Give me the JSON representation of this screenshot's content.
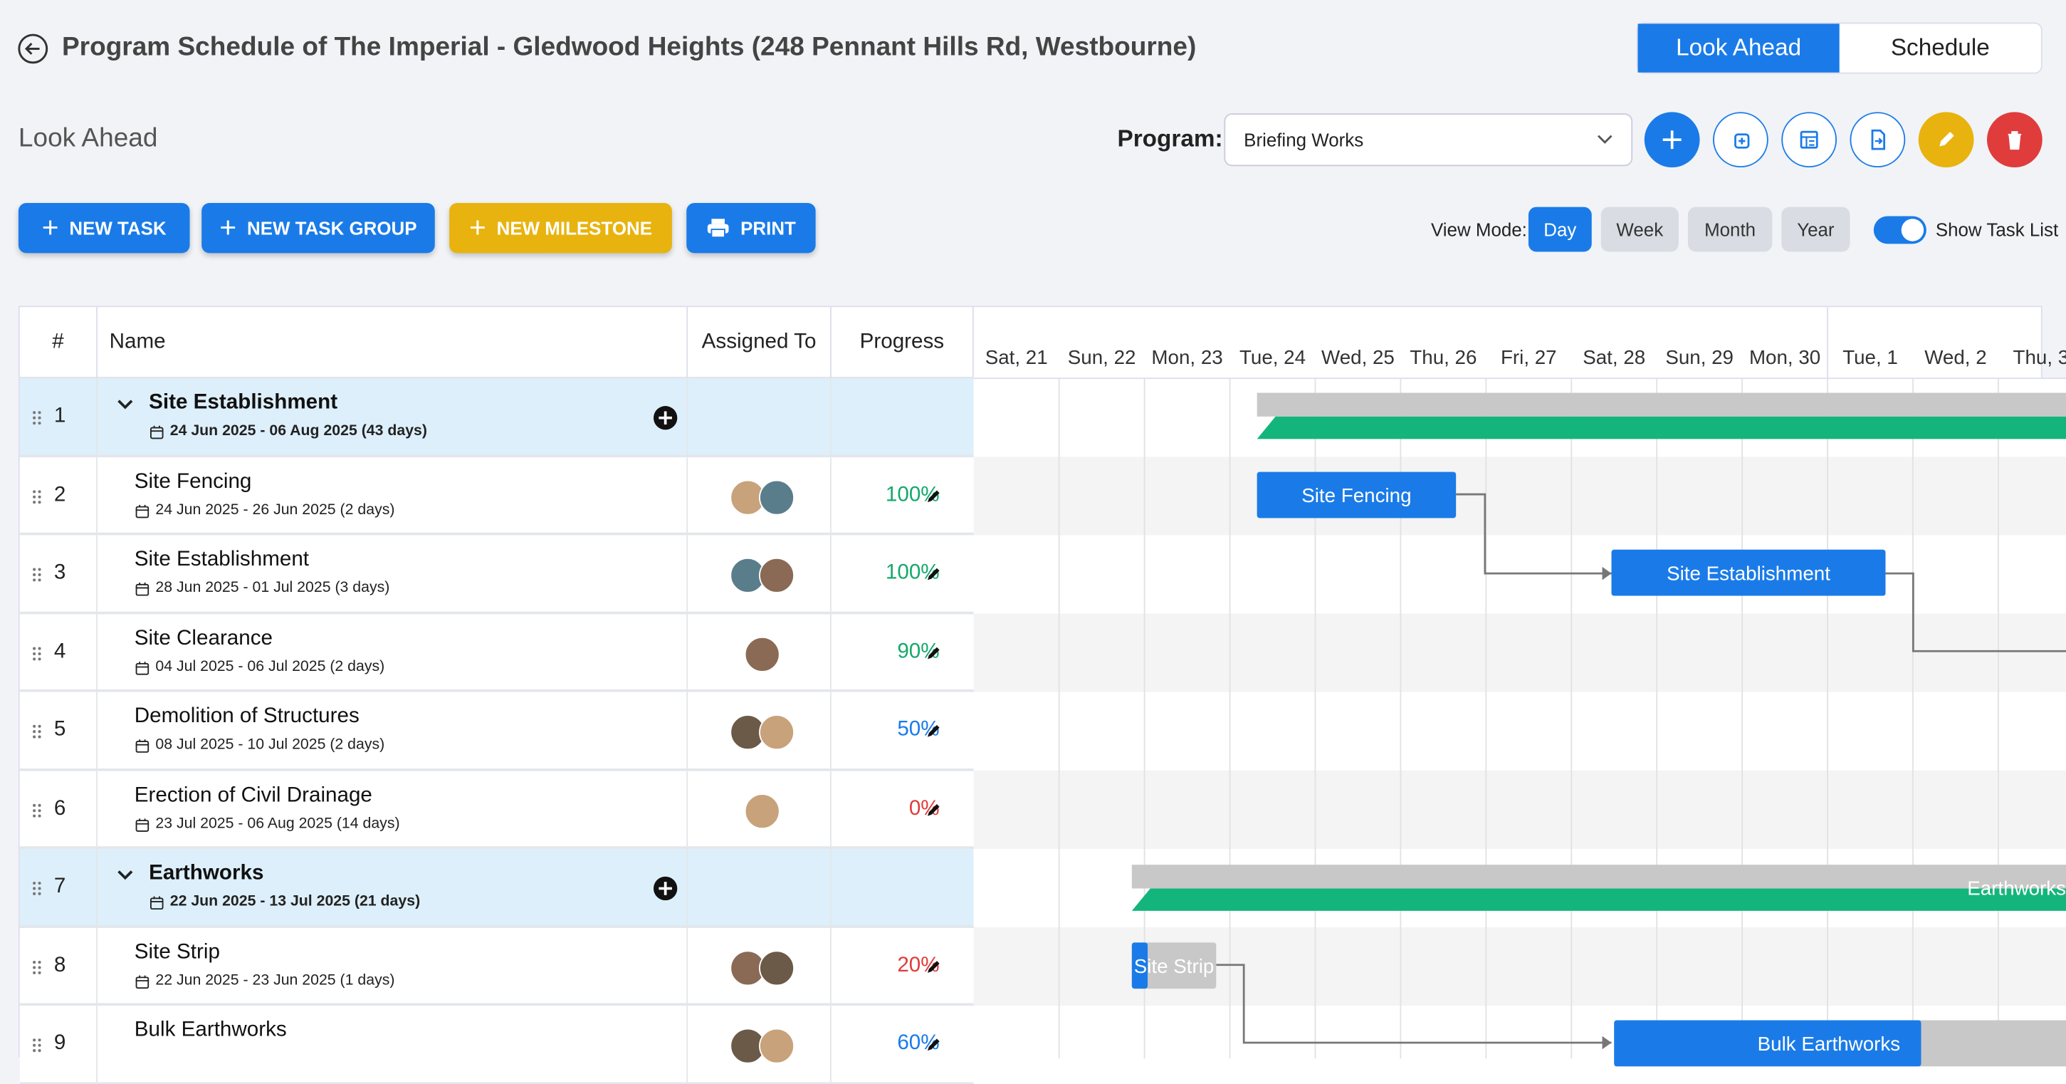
{
  "header": {
    "title": "Program Schedule of The Imperial - Gledwood Heights (248 Pennant Hills Rd, Westbourne)",
    "tabs": [
      "Look Ahead",
      "Schedule"
    ]
  },
  "section_title": "Look Ahead",
  "program": {
    "label": "Program:",
    "value": "Briefing Works"
  },
  "actions": [
    "NEW TASK",
    "NEW TASK GROUP",
    "NEW MILESTONE",
    "PRINT"
  ],
  "view_mode": {
    "label": "View Mode:",
    "options": [
      "Day",
      "Week",
      "Month",
      "Year"
    ],
    "toggle_label": "Show Task List"
  },
  "table": {
    "columns": [
      "#",
      "Name",
      "Assigned To",
      "Progress"
    ],
    "rows": [
      {
        "number": 1,
        "name": "Site Establishment",
        "dates": "24 Jun 2025 - 06 Aug 2025 (43 days)"
      },
      {
        "number": 2,
        "name": "Site Fencing",
        "dates": "24 Jun 2025 - 26 Jun 2025 (2 days)",
        "progress": "100%"
      },
      {
        "number": 3,
        "name": "Site Establishment",
        "dates": "28 Jun 2025 - 01 Jul 2025 (3 days)",
        "progress": "100%"
      },
      {
        "number": 4,
        "name": "Site Clearance",
        "dates": "04 Jul 2025 - 06 Jul 2025 (2 days)",
        "progress": "90%"
      },
      {
        "number": 5,
        "name": "Demolition of Structures",
        "dates": "08 Jul 2025 - 10 Jul 2025 (2 days)",
        "progress": "50%"
      },
      {
        "number": 6,
        "name": "Erection of Civil Drainage",
        "dates": "23 Jul 2025 - 06 Aug 2025 (14 days)",
        "progress": "0%"
      },
      {
        "number": 7,
        "name": "Earthworks",
        "dates": "22 Jun 2025 - 13 Jul 2025 (21 days)"
      },
      {
        "number": 8,
        "name": "Site Strip",
        "dates": "22 Jun 2025 - 23 Jun 2025 (1 days)",
        "progress": "20%"
      },
      {
        "number": 9,
        "name": "Bulk Earthworks",
        "progress": "60%"
      }
    ]
  },
  "gantt": {
    "days": [
      "Sat, 21",
      "Sun, 22",
      "Mon, 23",
      "Tue, 24",
      "Wed, 25",
      "Thu, 26",
      "Fri, 27",
      "Sat, 28",
      "Sun, 29",
      "Mon, 30",
      "Tue, 1",
      "Wed, 2",
      "Thu, 3"
    ],
    "bar_labels": [
      "Site Fencing",
      "Site Establishment",
      "Earthworks",
      "Site Strip",
      "Bulk Earthworks"
    ]
  }
}
